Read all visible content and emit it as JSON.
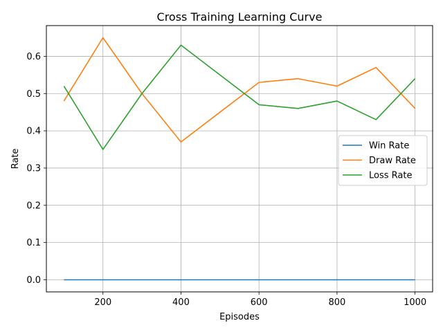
{
  "chart_data": {
    "type": "line",
    "title": "Cross Training Learning Curve",
    "xlabel": "Episodes",
    "ylabel": "Rate",
    "x": [
      100,
      200,
      300,
      400,
      500,
      600,
      700,
      800,
      900,
      1000
    ],
    "series": [
      {
        "name": "Win Rate",
        "color": "#1f77b4",
        "values": [
          0,
          0,
          0,
          0,
          0,
          0,
          0,
          0,
          0,
          0
        ]
      },
      {
        "name": "Draw Rate",
        "color": "#ff7f0e",
        "values": [
          0.48,
          0.65,
          0.5,
          0.37,
          0.45,
          0.53,
          0.54,
          0.52,
          0.57,
          0.46
        ]
      },
      {
        "name": "Loss Rate",
        "color": "#2ca02c",
        "values": [
          0.52,
          0.35,
          0.5,
          0.63,
          0.55,
          0.47,
          0.46,
          0.48,
          0.43,
          0.54
        ]
      }
    ],
    "xlim": [
      55,
      1045
    ],
    "ylim": [
      -0.0325,
      0.6825
    ],
    "xticks": [
      200,
      400,
      600,
      800,
      1000
    ],
    "xtick_labels": [
      "200",
      "400",
      "600",
      "800",
      "1000"
    ],
    "yticks": [
      0,
      0.1,
      0.2,
      0.3,
      0.4,
      0.5,
      0.6
    ],
    "ytick_labels": [
      "0.0",
      "0.1",
      "0.2",
      "0.3",
      "0.4",
      "0.5",
      "0.6"
    ],
    "grid": true,
    "legend_position": "center-right"
  }
}
